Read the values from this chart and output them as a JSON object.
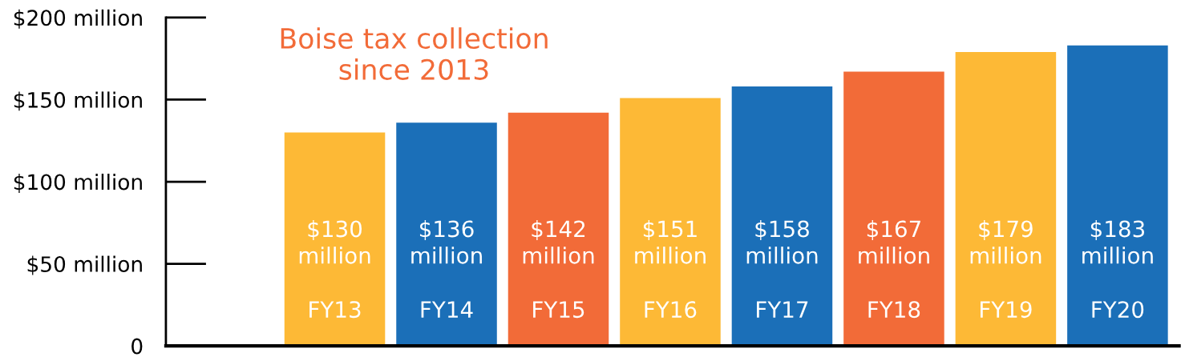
{
  "chart_data": {
    "type": "bar",
    "title": "Boise tax collection since 2013",
    "categories": [
      "FY13",
      "FY14",
      "FY15",
      "FY16",
      "FY17",
      "FY18",
      "FY19",
      "FY20"
    ],
    "values": [
      130,
      136,
      142,
      151,
      158,
      167,
      179,
      183
    ],
    "value_labels": [
      "$130 million",
      "$136 million",
      "$142 million",
      "$151 million",
      "$158 million",
      "$167 million",
      "$179 million",
      "$183 million"
    ],
    "colors": [
      "#fdb936",
      "#1b6fb8",
      "#f26b38",
      "#fdb936",
      "#1b6fb8",
      "#f26b38",
      "#fdb936",
      "#1b6fb8"
    ],
    "ylim": [
      0,
      200
    ],
    "yticks": [
      0,
      {
        "value": 50,
        "label": "$50 million"
      },
      {
        "value": 100,
        "label": "$100 million"
      },
      {
        "value": 150,
        "label": "$150 million"
      },
      {
        "value": 200,
        "label": "$200 million"
      }
    ],
    "grid": false,
    "legend": false
  }
}
